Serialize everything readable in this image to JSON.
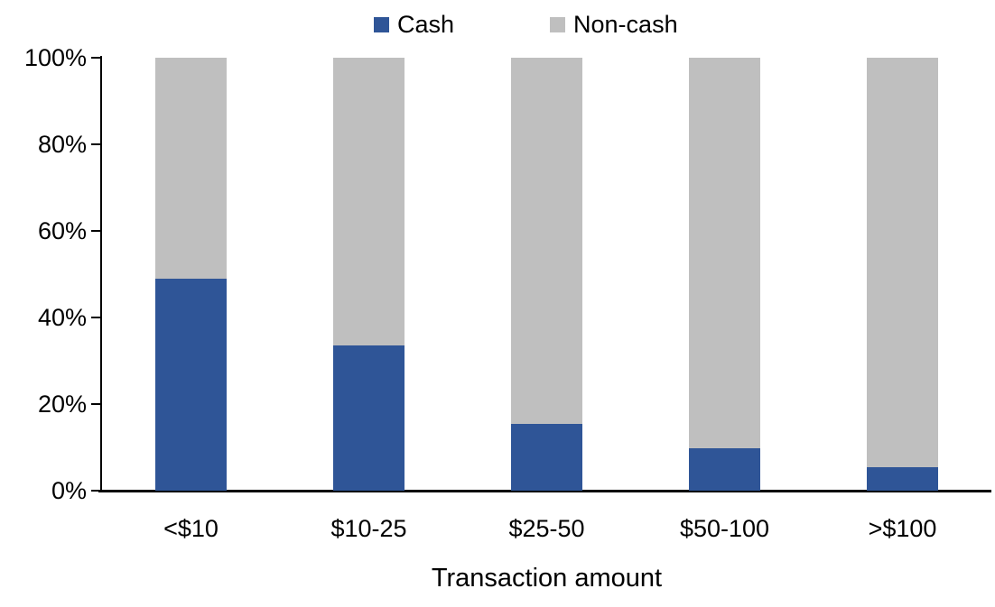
{
  "chart_data": {
    "type": "bar",
    "stacked": true,
    "percent_stacked": true,
    "title": "",
    "xlabel": "Transaction amount",
    "ylabel": "",
    "categories": [
      "<$10",
      "$10-25",
      "$25-50",
      "$50-100",
      ">$100"
    ],
    "series": [
      {
        "name": "Cash",
        "color": "#2F5597",
        "values": [
          49,
          33.5,
          15.5,
          9.8,
          5.4
        ]
      },
      {
        "name": "Non-cash",
        "color": "#BFBFBF",
        "values": [
          51,
          66.5,
          84.5,
          90.2,
          94.6
        ]
      }
    ],
    "ylim": [
      0,
      100
    ],
    "ytick_labels": [
      "0%",
      "20%",
      "40%",
      "60%",
      "80%",
      "100%"
    ],
    "ytick_values": [
      0,
      20,
      40,
      60,
      80,
      100
    ],
    "grid": false,
    "legend_position": "top",
    "colors": {
      "axis": "#000000",
      "text": "#000000",
      "background": "#FFFFFF"
    }
  }
}
